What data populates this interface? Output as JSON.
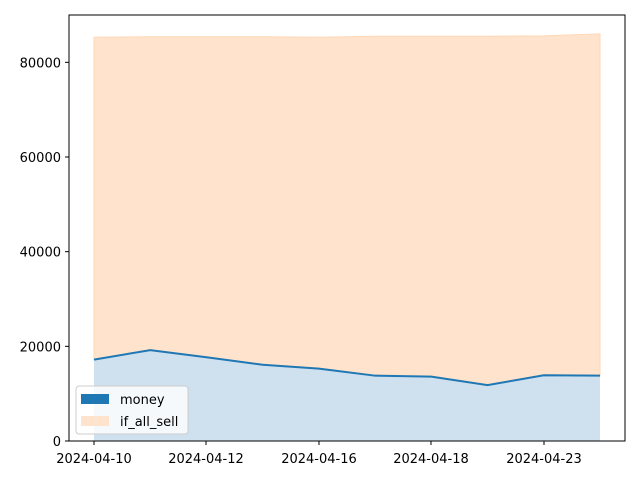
{
  "chart_data": {
    "type": "area",
    "x_ticks": [
      "2024-04-10",
      "2024-04-12",
      "2024-04-16",
      "2024-04-18",
      "2024-04-23"
    ],
    "y_ticks": [
      0,
      20000,
      40000,
      60000,
      80000
    ],
    "ylim": [
      0,
      90000
    ],
    "grid": false,
    "legend_position": "lower-left",
    "series": [
      {
        "name": "money",
        "kind": "line-with-fill",
        "color": "#1f77b4",
        "fill_color": "#cfe0ef",
        "values": [
          17200,
          19200,
          17700,
          16100,
          15300,
          13800,
          13600,
          11800,
          13900,
          13800
        ]
      },
      {
        "name": "if_all_sell",
        "kind": "fill",
        "color": "#ffe3cc",
        "values": [
          85300,
          85400,
          85400,
          85400,
          85300,
          85500,
          85500,
          85500,
          85600,
          86000
        ]
      }
    ]
  }
}
